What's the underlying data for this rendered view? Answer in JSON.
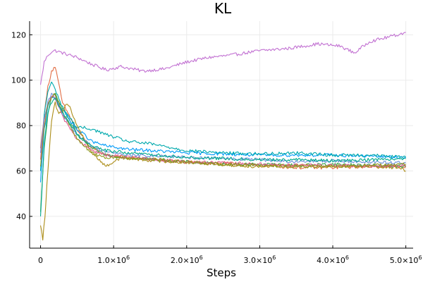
{
  "chart_data": {
    "type": "line",
    "title": "KL",
    "xlabel": "Steps",
    "ylabel": "",
    "xlim": [
      -150000,
      5100000
    ],
    "ylim": [
      26,
      126
    ],
    "grid": true,
    "legend": "none",
    "xticks": [
      {
        "value": 0,
        "mantissa": "0",
        "exp": ""
      },
      {
        "value": 1000000,
        "mantissa": "1.0×10",
        "exp": "6"
      },
      {
        "value": 2000000,
        "mantissa": "2.0×10",
        "exp": "6"
      },
      {
        "value": 3000000,
        "mantissa": "3.0×10",
        "exp": "6"
      },
      {
        "value": 4000000,
        "mantissa": "4.0×10",
        "exp": "6"
      },
      {
        "value": 5000000,
        "mantissa": "5.0×10",
        "exp": "6"
      }
    ],
    "yticks": [
      {
        "value": 40,
        "label": "40"
      },
      {
        "value": 60,
        "label": "60"
      },
      {
        "value": 80,
        "label": "80"
      },
      {
        "value": 100,
        "label": "100"
      },
      {
        "value": 120,
        "label": "120"
      }
    ],
    "series": [
      {
        "color": "#c271d2",
        "x": [
          0,
          50000,
          100000,
          150000,
          200000,
          300000,
          500000,
          700000,
          900000,
          1100000,
          1400000,
          1700000,
          2000000,
          2300000,
          2600000,
          3000000,
          3400000,
          3800000,
          4100000,
          4300000,
          4500000,
          4700000,
          5000000
        ],
        "y": [
          98,
          108,
          111,
          112.5,
          113,
          112,
          110,
          107,
          104.5,
          106,
          104,
          105,
          108,
          110,
          111,
          113,
          114,
          116,
          115,
          112,
          117,
          118.5,
          121
        ]
      },
      {
        "color": "#e26f46",
        "x": [
          0,
          50000,
          100000,
          150000,
          200000,
          300000,
          500000,
          700000,
          900000,
          1200000,
          1600000,
          2000000,
          2500000,
          3000000,
          3500000,
          4000000,
          4500000,
          5000000
        ],
        "y": [
          70,
          85,
          97,
          104,
          106,
          90,
          78,
          70,
          67,
          66,
          65,
          64,
          63.5,
          62.5,
          61.5,
          61.5,
          62,
          62
        ]
      },
      {
        "color": "#3da44d",
        "x": [
          0,
          50000,
          100000,
          150000,
          200000,
          300000,
          500000,
          700000,
          900000,
          1200000,
          1600000,
          2000000,
          2500000,
          3000000,
          3500000,
          4000000,
          4500000,
          5000000
        ],
        "y": [
          42,
          70,
          85,
          92,
          94,
          88,
          76,
          70,
          67,
          66,
          65,
          64,
          63,
          63,
          62.5,
          63,
          62.5,
          62
        ]
      },
      {
        "color": "#009af9",
        "x": [
          0,
          50000,
          100000,
          150000,
          200000,
          300000,
          500000,
          600000,
          700000,
          900000,
          1200000,
          1500000,
          2000000,
          2500000,
          3000000,
          3500000,
          4000000,
          4500000,
          5000000
        ],
        "y": [
          55,
          78,
          88,
          93,
          92,
          87,
          78,
          76,
          73,
          71,
          69.5,
          69,
          68,
          67.5,
          67,
          67,
          67,
          66.5,
          66
        ]
      },
      {
        "color": "#00a9ad",
        "x": [
          0,
          50000,
          100000,
          150000,
          200000,
          300000,
          500000,
          600000,
          700000,
          900000,
          1200000,
          1500000,
          2000000,
          2500000,
          3000000,
          3500000,
          4000000,
          4500000,
          5000000
        ],
        "y": [
          60,
          85,
          95,
          99,
          96,
          88,
          79,
          79,
          78.5,
          76,
          73,
          72,
          69,
          68,
          67.5,
          68,
          67,
          67,
          66
        ]
      },
      {
        "color": "#ac8d18",
        "x": [
          0,
          30000,
          60000,
          100000,
          150000,
          200000,
          250000,
          300000,
          350000,
          400000,
          500000,
          700000,
          900000,
          1100000,
          1400000,
          1800000,
          2200000,
          2600000,
          3000000,
          3500000,
          4000000,
          4500000,
          4900000,
          5000000
        ],
        "y": [
          36,
          30,
          40,
          60,
          82,
          90,
          85,
          86,
          90,
          88,
          80,
          68,
          62,
          66,
          65,
          64,
          63.5,
          62.5,
          62,
          62.5,
          62,
          62,
          61.5,
          60
        ]
      },
      {
        "color": "#e05c8c",
        "x": [
          0,
          50000,
          100000,
          150000,
          200000,
          300000,
          500000,
          700000,
          900000,
          1200000,
          1600000,
          2000000,
          2500000,
          3000000,
          3500000,
          4000000,
          4500000,
          5000000
        ],
        "y": [
          65,
          82,
          90,
          93,
          92,
          84,
          74,
          69,
          67,
          66,
          65,
          64,
          63.5,
          63,
          62.5,
          62.5,
          62,
          62.5
        ]
      },
      {
        "color": "#6b8fd9",
        "x": [
          0,
          50000,
          100000,
          150000,
          200000,
          300000,
          500000,
          700000,
          900000,
          1200000,
          1600000,
          2000000,
          2500000,
          3000000,
          3500000,
          4000000,
          4500000,
          5000000
        ],
        "y": [
          68,
          83,
          90,
          94,
          93,
          85,
          76,
          71,
          68.5,
          67,
          66.5,
          66,
          65.5,
          65,
          64,
          64.5,
          64,
          63.5
        ]
      },
      {
        "color": "#8e971d",
        "x": [
          0,
          50000,
          100000,
          150000,
          200000,
          300000,
          500000,
          700000,
          900000,
          1200000,
          1600000,
          2000000,
          2500000,
          3000000,
          3500000,
          4000000,
          4500000,
          5000000
        ],
        "y": [
          62,
          80,
          89,
          93,
          94,
          86,
          74,
          68,
          66,
          65.5,
          65,
          64,
          63,
          62.5,
          62,
          62,
          62.5,
          63
        ]
      },
      {
        "color": "#00aa8e",
        "x": [
          0,
          50000,
          100000,
          150000,
          200000,
          300000,
          500000,
          700000,
          900000,
          1200000,
          1600000,
          2000000,
          2500000,
          3000000,
          3500000,
          4000000,
          4500000,
          5000000
        ],
        "y": [
          40,
          72,
          86,
          90,
          92,
          86,
          76,
          71,
          69,
          68,
          67,
          66,
          65.5,
          65,
          65,
          64.5,
          65,
          65.5
        ]
      }
    ]
  }
}
